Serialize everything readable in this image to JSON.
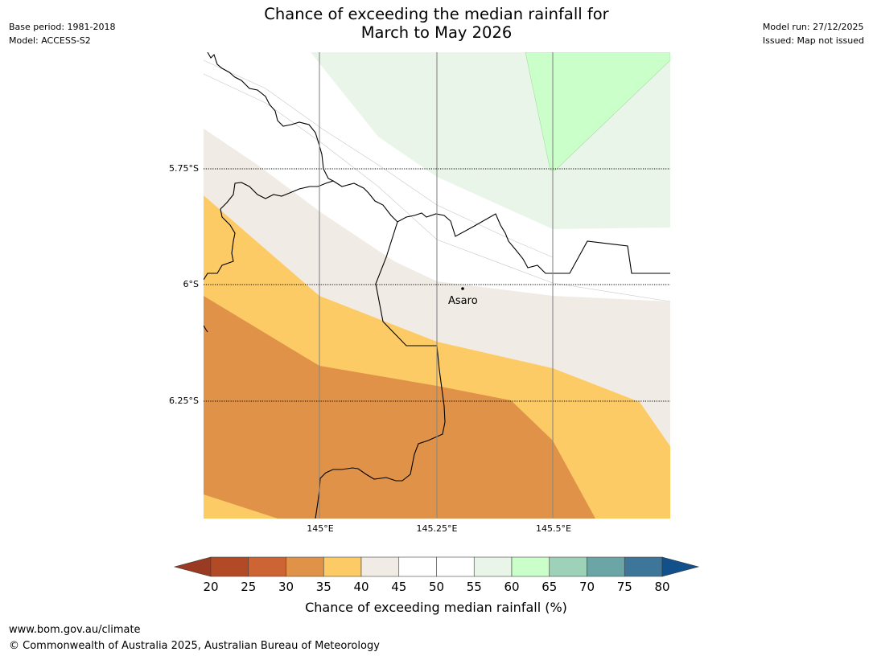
{
  "header": {
    "title_line1": "Chance of exceeding the median rainfall for",
    "title_line2": "March to May 2026",
    "base_period": "Base period: 1981-2018",
    "model": "Model: ACCESS-S2",
    "model_run": "Model run: 27/12/2025",
    "issued": "Issued: Map not issued"
  },
  "map": {
    "lat_labels": [
      "5.75°S",
      "6°S",
      "6.25°S"
    ],
    "lon_labels": [
      "145°E",
      "145.25°E",
      "145.5°E"
    ],
    "place": "Asaro"
  },
  "colorbar": {
    "title": "Chance of exceeding median rainfall (%)",
    "ticks": [
      "20",
      "25",
      "30",
      "35",
      "40",
      "45",
      "50",
      "55",
      "60",
      "65",
      "70",
      "75",
      "80"
    ],
    "below_color": "#9a3a22",
    "above_color": "#12508c",
    "bins": [
      {
        "range": "20-25",
        "color": "#b24a26"
      },
      {
        "range": "25-30",
        "color": "#cc6433"
      },
      {
        "range": "30-35",
        "color": "#e09348"
      },
      {
        "range": "35-40",
        "color": "#fdcb66"
      },
      {
        "range": "40-45",
        "color": "#f0ebe5"
      },
      {
        "range": "45-50",
        "color": "#ffffff"
      },
      {
        "range": "50-55",
        "color": "#ffffff"
      },
      {
        "range": "55-60",
        "color": "#e9f5e9"
      },
      {
        "range": "60-65",
        "color": "#caffca"
      },
      {
        "range": "65-70",
        "color": "#9dd1b8"
      },
      {
        "range": "70-75",
        "color": "#6ba5a5"
      },
      {
        "range": "75-80",
        "color": "#3e7699"
      }
    ]
  },
  "footer": {
    "url": "www.bom.gov.au/climate",
    "copyright": "© Commonwealth of Australia 2025, Australian Bureau of Meteorology"
  }
}
